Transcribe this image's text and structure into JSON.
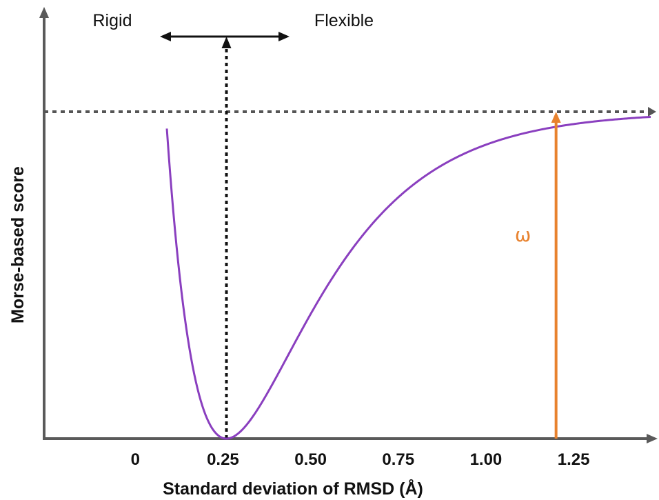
{
  "chart_data": {
    "type": "line",
    "title": "",
    "xlabel": "Standard deviation of RMSD (Å)",
    "ylabel": "Morse-based score",
    "x_ticks": [
      "0",
      "0.25",
      "0.50",
      "0.75",
      "1.00",
      "1.25"
    ],
    "x_tick_values": [
      0,
      0.25,
      0.5,
      0.75,
      1.0,
      1.25
    ],
    "xlim": [
      -0.26,
      1.47
    ],
    "ylim": [
      0,
      1
    ],
    "grid": false,
    "legend": "none",
    "curve": {
      "kind": "morse",
      "minimum_x": 0.26,
      "minimum_y": 0,
      "asymptote_y": 1,
      "x_start": 0.09,
      "x_end": 1.47,
      "color": "#8a3fbf"
    },
    "reference_line_y": 1,
    "reference_line_x": 0.26,
    "annotations": {
      "rigid": "Rigid",
      "flexible": "Flexible",
      "omega": "ω",
      "omega_x": 1.2,
      "omega_color": "#e8822e"
    },
    "colors": {
      "axis": "#5a5a5a",
      "dotted": "#555555",
      "arrow": "#111111"
    }
  }
}
